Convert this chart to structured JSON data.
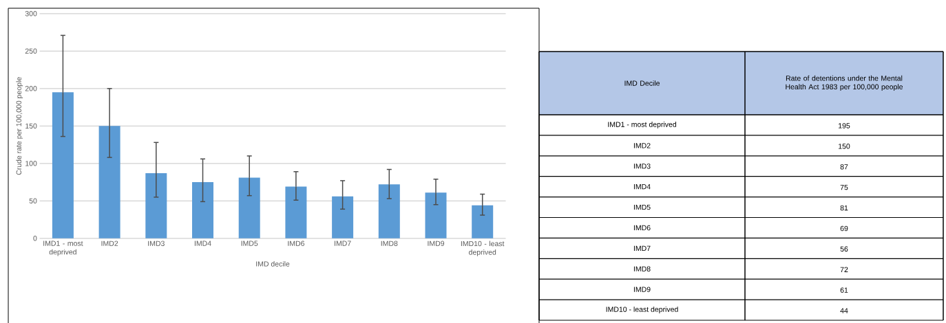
{
  "chart_data": [
    {
      "type": "bar",
      "categories": [
        "IMD1 - most deprived",
        "IMD2",
        "IMD3",
        "IMD4",
        "IMD5",
        "IMD6",
        "IMD7",
        "IMD8",
        "IMD9",
        "IMD10 - least deprived"
      ],
      "values": [
        195,
        150,
        87,
        75,
        81,
        69,
        56,
        72,
        61,
        44
      ],
      "errors": [
        [
          136,
          271
        ],
        [
          108,
          200
        ],
        [
          55,
          128
        ],
        [
          49,
          106
        ],
        [
          57,
          110
        ],
        [
          51,
          89
        ],
        [
          39,
          77
        ],
        [
          53,
          92
        ],
        [
          45,
          79
        ],
        [
          31,
          59
        ]
      ],
      "color": "#5b9bd5",
      "xlabel": "IMD decile",
      "ylabel": "Crude rate per 100,000 people",
      "ylim": [
        0,
        300
      ],
      "yticks": [
        0,
        50,
        100,
        150,
        200,
        250,
        300
      ],
      "grid": "y"
    },
    {
      "type": "other",
      "categories": [
        "IMD1 - most deprived",
        "IMD2",
        "IMD3",
        "IMD4",
        "IMD5",
        "IMD6",
        "IMD7",
        "IMD8",
        "IMD9",
        "IMD10 - least deprived"
      ],
      "value_labels": [
        "195",
        "150",
        "87",
        "75",
        "81",
        "69",
        "56",
        "72",
        "61",
        "44"
      ],
      "annotations": [
        "IMD Decile",
        "Rate of detentions under the Mental Health Act 1983 per 100,000 people"
      ]
    }
  ]
}
